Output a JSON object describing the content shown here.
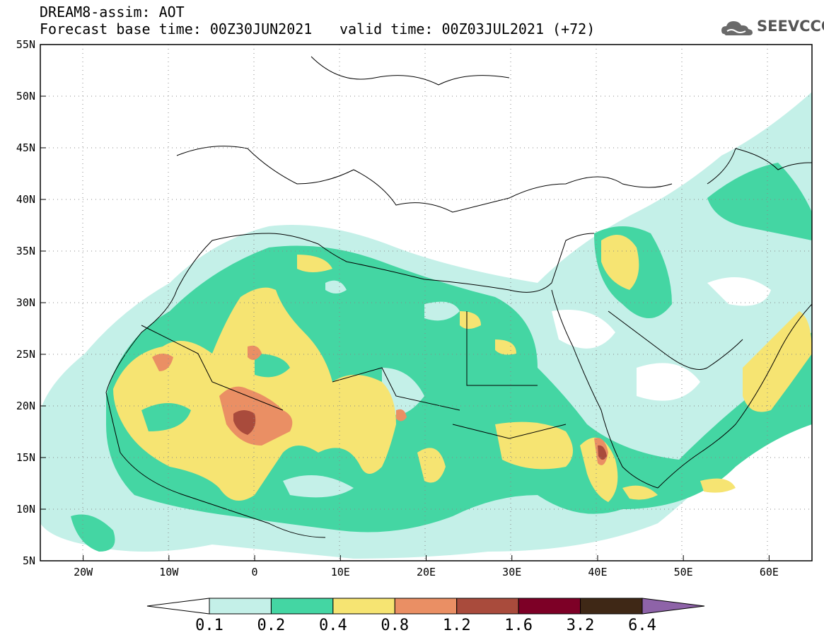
{
  "header": {
    "title": "DREAM8-assim: AOT",
    "base_time": "Forecast base time: 00Z30JUN2021",
    "valid_time": "valid time: 00Z03JUL2021 (+72)",
    "logo_text": "SEEVCCC"
  },
  "map": {
    "lon_range": [
      -25,
      65
    ],
    "lat_range": [
      5,
      55
    ],
    "grid": true,
    "lat_ticks": [
      {
        "value": 55,
        "label": "55N"
      },
      {
        "value": 50,
        "label": "50N"
      },
      {
        "value": 45,
        "label": "45N"
      },
      {
        "value": 40,
        "label": "40N"
      },
      {
        "value": 35,
        "label": "35N"
      },
      {
        "value": 30,
        "label": "30N"
      },
      {
        "value": 25,
        "label": "25N"
      },
      {
        "value": 20,
        "label": "20N"
      },
      {
        "value": 15,
        "label": "15N"
      },
      {
        "value": 10,
        "label": "10N"
      },
      {
        "value": 5,
        "label": "5N"
      }
    ],
    "lon_ticks": [
      {
        "value": -20,
        "label": "20W"
      },
      {
        "value": -10,
        "label": "10W"
      },
      {
        "value": 0,
        "label": "0"
      },
      {
        "value": 10,
        "label": "10E"
      },
      {
        "value": 20,
        "label": "20E"
      },
      {
        "value": 30,
        "label": "30E"
      },
      {
        "value": 40,
        "label": "40E"
      },
      {
        "value": 50,
        "label": "50E"
      },
      {
        "value": 60,
        "label": "60E"
      }
    ]
  },
  "colorbar": {
    "colors": [
      "#ffffff",
      "#c4f0e8",
      "#44d6a3",
      "#f6e472",
      "#ea8f64",
      "#a94b3c",
      "#7d0026",
      "#3f2816",
      "#8e63a8"
    ],
    "labels": [
      "0.1",
      "0.2",
      "0.4",
      "0.8",
      "1.2",
      "1.6",
      "3.2",
      "6.4"
    ]
  }
}
